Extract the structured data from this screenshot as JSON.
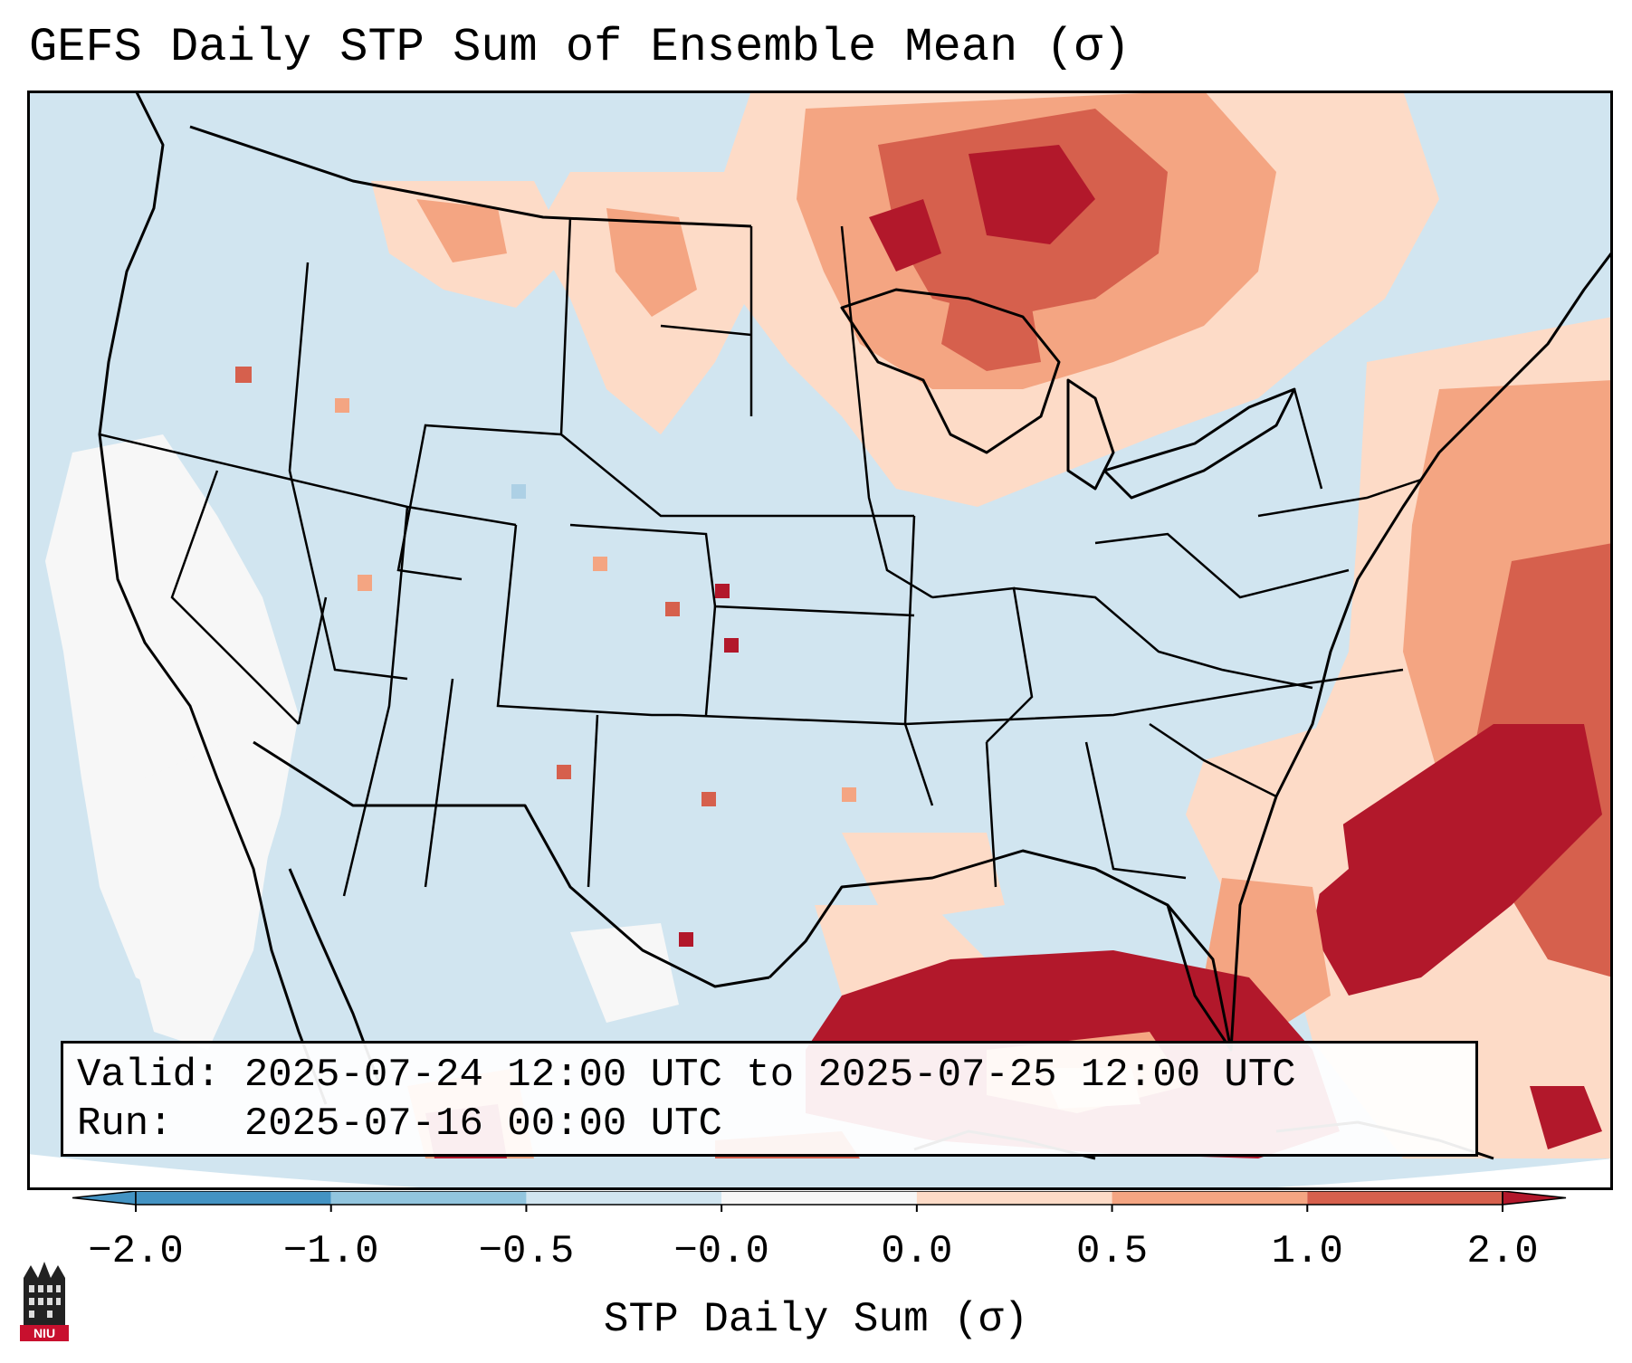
{
  "title": "GEFS Daily STP Sum of Ensemble Mean (σ)",
  "info": {
    "valid_label": "Valid:",
    "valid_value": "2025-07-24 12:00 UTC to 2025-07-25 12:00 UTC",
    "run_label": "Run:",
    "run_value": "2025-07-16 00:00 UTC"
  },
  "colorbar": {
    "label": "STP Daily Sum (σ)",
    "ticks": [
      "−2.0",
      "−1.0",
      "−0.5",
      "−0.0",
      "0.0",
      "0.5",
      "1.0",
      "2.0"
    ],
    "bin_colors": [
      "#4393c3",
      "#92c5de",
      "#d1e5f0",
      "#f7f7f7",
      "#fddbc7",
      "#f4a582",
      "#d6604d",
      "#b2182b"
    ],
    "extend": "both"
  },
  "map": {
    "projection": "Lambert Conformal (CONUS)",
    "background_color": "#d1e5f0",
    "boundary_color": "#000000"
  },
  "logo": {
    "text": "NIU",
    "icon": "niu-logo"
  }
}
